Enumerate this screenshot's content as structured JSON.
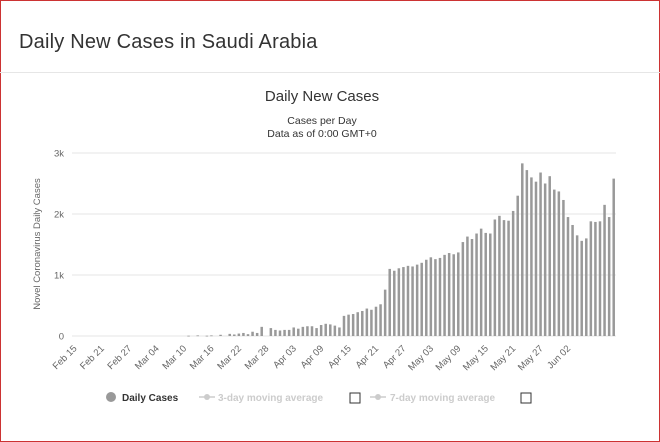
{
  "page": {
    "title": "Daily New Cases in Saudi Arabia"
  },
  "colors": {
    "bar": "#999999",
    "grid": "#e6e6e6",
    "frame": "#cc3333",
    "legend_inactive": "#cccccc"
  },
  "chart_data": {
    "type": "bar",
    "title": "Daily New Cases",
    "subtitle_lines": [
      "Cases per Day",
      "Data as of 0:00 GMT+0"
    ],
    "ylabel": "Novel Coronavirus Daily Cases",
    "xlabel": "",
    "ylim": [
      0,
      3000
    ],
    "y_ticks": [
      0,
      1000,
      2000,
      3000
    ],
    "y_tick_labels": [
      "0",
      "1k",
      "2k",
      "3k"
    ],
    "x_tick_labels": [
      "Feb 15",
      "Feb 21",
      "Feb 27",
      "Mar 04",
      "Mar 10",
      "Mar 16",
      "Mar 22",
      "Mar 28",
      "Apr 03",
      "Apr 09",
      "Apr 15",
      "Apr 21",
      "Apr 27",
      "May 03",
      "May 09",
      "May 15",
      "May 21",
      "May 27",
      "Jun 02"
    ],
    "x_tick_every": 6,
    "grid": true,
    "legend_position": "bottom",
    "series": [
      {
        "name": "Daily Cases",
        "values": [
          0,
          0,
          0,
          0,
          0,
          0,
          0,
          0,
          0,
          0,
          0,
          0,
          0,
          0,
          0,
          0,
          0,
          0,
          0,
          0,
          0,
          0,
          0,
          0,
          0,
          5,
          0,
          10,
          0,
          5,
          10,
          0,
          20,
          0,
          35,
          25,
          40,
          50,
          30,
          70,
          50,
          150,
          0,
          130,
          100,
          90,
          100,
          100,
          140,
          120,
          150,
          160,
          160,
          130,
          180,
          200,
          190,
          170,
          140,
          330,
          350,
          360,
          390,
          410,
          450,
          430,
          480,
          520,
          760,
          1100,
          1070,
          1110,
          1130,
          1150,
          1140,
          1170,
          1200,
          1250,
          1290,
          1260,
          1280,
          1330,
          1360,
          1340,
          1370,
          1540,
          1630,
          1590,
          1680,
          1760,
          1690,
          1680,
          1910,
          1970,
          1900,
          1890,
          2050,
          2300,
          2830,
          2720,
          2600,
          2530,
          2680,
          2500,
          2620,
          2400,
          2370,
          2230,
          1950,
          1820,
          1650,
          1560,
          1600,
          1880,
          1870,
          1880,
          2150,
          1950,
          2580
        ]
      }
    ],
    "legend": {
      "items": [
        {
          "label": "Daily Cases",
          "active": true
        },
        {
          "label": "3-day moving average",
          "active": false
        },
        {
          "label": "7-day moving average",
          "active": false
        }
      ]
    }
  }
}
